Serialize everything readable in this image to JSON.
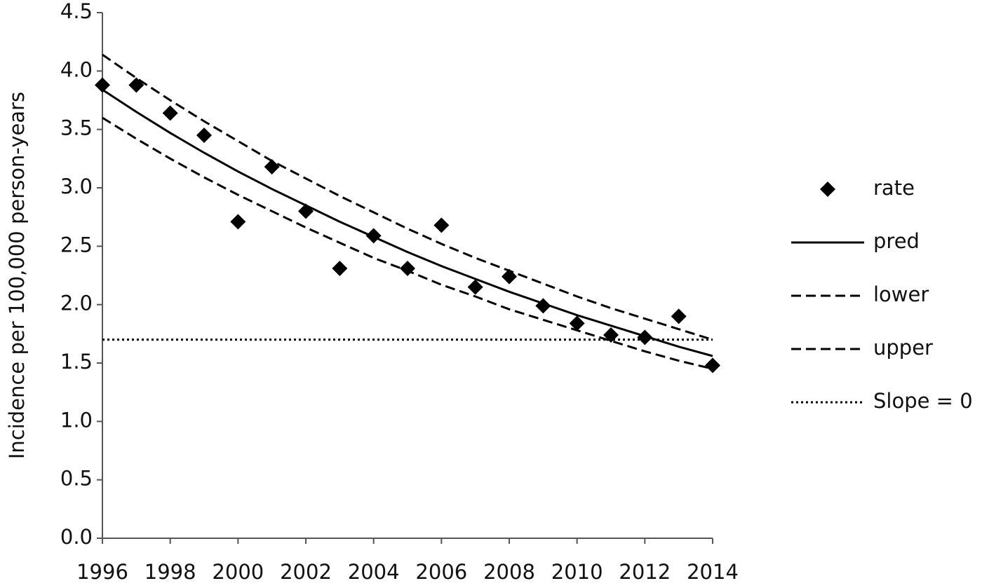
{
  "chart_data": {
    "type": "line",
    "y_label": "Incidence per 100,000 person-years",
    "x": [
      1996,
      1997,
      1998,
      1999,
      2000,
      2001,
      2002,
      2003,
      2004,
      2005,
      2006,
      2007,
      2008,
      2009,
      2010,
      2011,
      2012,
      2013,
      2014
    ],
    "series": [
      {
        "name": "rate",
        "color": "#000000",
        "style": "marker",
        "values": [
          3.88,
          3.88,
          3.64,
          3.45,
          2.71,
          3.18,
          2.8,
          2.31,
          2.59,
          2.31,
          2.68,
          2.15,
          2.24,
          1.99,
          1.84,
          1.74,
          1.72,
          1.9,
          1.48
        ]
      },
      {
        "name": "pred",
        "color": "#000000",
        "style": "solid",
        "values": [
          3.84,
          3.65,
          3.47,
          3.3,
          3.14,
          2.99,
          2.85,
          2.71,
          2.58,
          2.45,
          2.33,
          2.22,
          2.11,
          2.01,
          1.91,
          1.82,
          1.73,
          1.64,
          1.56
        ]
      },
      {
        "name": "lower",
        "color": "#000000",
        "style": "dashed",
        "values": [
          3.6,
          3.42,
          3.25,
          3.09,
          2.94,
          2.8,
          2.66,
          2.53,
          2.4,
          2.29,
          2.17,
          2.07,
          1.96,
          1.87,
          1.78,
          1.69,
          1.6,
          1.52,
          1.45
        ]
      },
      {
        "name": "upper",
        "color": "#000000",
        "style": "dashed",
        "values": [
          4.14,
          3.94,
          3.75,
          3.57,
          3.4,
          3.23,
          3.08,
          2.93,
          2.79,
          2.65,
          2.52,
          2.4,
          2.29,
          2.18,
          2.07,
          1.97,
          1.88,
          1.79,
          1.7
        ]
      },
      {
        "name": "Slope = 0",
        "color": "#000000",
        "style": "dotted",
        "values": [
          1.7,
          1.7,
          1.7,
          1.7,
          1.7,
          1.7,
          1.7,
          1.7,
          1.7,
          1.7,
          1.7,
          1.7,
          1.7,
          1.7,
          1.7,
          1.7,
          1.7,
          1.7,
          1.7
        ]
      }
    ],
    "xlim": [
      1996,
      2014
    ],
    "xticks": [
      1996,
      1998,
      2000,
      2002,
      2004,
      2006,
      2008,
      2010,
      2012,
      2014
    ],
    "ylim": [
      0,
      4.5
    ],
    "yticks": [
      {
        "value": 0,
        "label": "0.0"
      },
      0.5,
      {
        "value": 1,
        "label": "1.0"
      },
      1.5,
      {
        "value": 2,
        "label": "2.0"
      },
      2.5,
      {
        "value": 3,
        "label": "3.0"
      },
      3.5,
      {
        "value": 4,
        "label": "4.0"
      },
      4.5
    ],
    "legend": "right"
  }
}
